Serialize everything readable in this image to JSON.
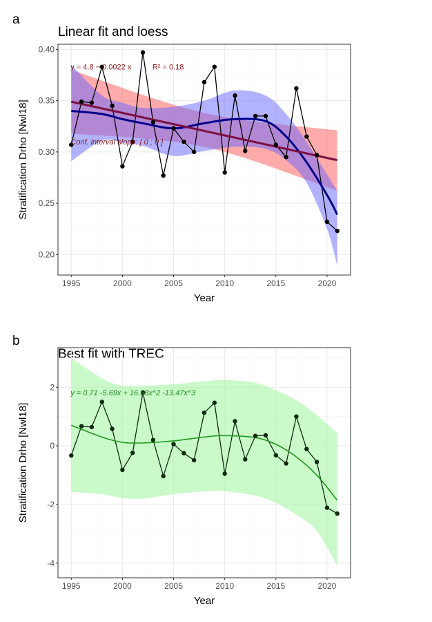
{
  "chart_data": [
    {
      "tag": "a",
      "type": "line",
      "title": "Linear fit and loess",
      "xlabel": "Year",
      "ylabel": "Stratification Drho [Nwl18]",
      "xlim": [
        1993.7,
        2022.3
      ],
      "ylim": [
        0.18,
        0.405
      ],
      "xticks": [
        1995,
        2000,
        2005,
        2010,
        2015,
        2020
      ],
      "yticks": [
        0.2,
        0.25,
        0.3,
        0.35,
        0.4
      ],
      "ytick_labels": [
        "0.20",
        "0.25",
        "0.30",
        "0.35",
        "0.40"
      ],
      "grid": true,
      "x": [
        1995,
        1996,
        1997,
        1998,
        1999,
        2000,
        2001,
        2002,
        2003,
        2004,
        2005,
        2006,
        2007,
        2008,
        2009,
        2010,
        2011,
        2012,
        2013,
        2014,
        2015,
        2016,
        2017,
        2018,
        2019,
        2020,
        2021
      ],
      "observed": [
        0.307,
        0.349,
        0.348,
        0.383,
        0.345,
        0.286,
        0.31,
        0.397,
        0.329,
        0.277,
        0.323,
        0.31,
        0.3,
        0.368,
        0.383,
        0.28,
        0.355,
        0.301,
        0.335,
        0.335,
        0.307,
        0.295,
        0.362,
        0.315,
        0.297,
        0.232,
        0.223
      ],
      "linear_fit": {
        "x": [
          1995,
          2021
        ],
        "y": [
          0.349,
          0.292
        ],
        "ci_upper": [
          0.38,
          0.338,
          0.321
        ],
        "ci_lower": [
          0.318,
          0.305,
          0.262
        ],
        "ci_x": [
          1995,
          2008,
          2021
        ],
        "color": "#7b1040",
        "band_color": "#ff6666"
      },
      "loess_fit": {
        "x": [
          1995,
          1998,
          2000,
          2002,
          2005,
          2008,
          2011,
          2014,
          2016,
          2018,
          2020,
          2021
        ],
        "y": [
          0.34,
          0.337,
          0.332,
          0.328,
          0.323,
          0.328,
          0.332,
          0.33,
          0.315,
          0.29,
          0.258,
          0.239
        ],
        "upper": [
          0.385,
          0.355,
          0.348,
          0.343,
          0.344,
          0.35,
          0.36,
          0.355,
          0.337,
          0.31,
          0.278,
          0.262
        ],
        "lower": [
          0.291,
          0.311,
          0.309,
          0.306,
          0.296,
          0.301,
          0.305,
          0.303,
          0.292,
          0.27,
          0.225,
          0.189
        ],
        "color": "#00008b",
        "band_color": "#6666ff"
      },
      "annotations": [
        {
          "text": "y = 4.8 − 0.0022 x",
          "x": 1995,
          "y": 0.383,
          "italic": false
        },
        {
          "text": "R² = 0.18",
          "x": 2003,
          "y": 0.383,
          "italic": false
        },
        {
          "text": "Conf. interval slope: [ 0 ; 0 ]",
          "x": 1995,
          "y": 0.31,
          "italic": true
        }
      ],
      "annotation_color": "#8b1a1a"
    },
    {
      "tag": "b",
      "type": "line",
      "title": "Best fit with TREC",
      "xlabel": "Year",
      "ylabel": "Stratification Drho [Nwl18]",
      "xlim": [
        1993.7,
        2022.3
      ],
      "ylim": [
        -4.5,
        3.35
      ],
      "xticks": [
        1995,
        2000,
        2005,
        2010,
        2015,
        2020
      ],
      "yticks": [
        -4,
        -2,
        0,
        2
      ],
      "ytick_labels": [
        "-4",
        "-2",
        "0",
        "2"
      ],
      "grid": true,
      "x": [
        1995,
        1996,
        1997,
        1998,
        1999,
        2000,
        2001,
        2002,
        2003,
        2004,
        2005,
        2006,
        2007,
        2008,
        2009,
        2010,
        2011,
        2012,
        2013,
        2014,
        2015,
        2016,
        2017,
        2018,
        2019,
        2020,
        2021
      ],
      "observed": [
        -0.33,
        0.67,
        0.64,
        1.5,
        0.58,
        -0.82,
        -0.24,
        1.82,
        0.2,
        -1.03,
        0.06,
        -0.25,
        -0.49,
        1.13,
        1.47,
        -0.95,
        0.84,
        -0.46,
        0.34,
        0.36,
        -0.32,
        -0.6,
        1.0,
        -0.11,
        -0.55,
        -2.11,
        -2.31
      ],
      "poly_fit": {
        "x": [
          1995,
          1998,
          2000,
          2002,
          2005,
          2008,
          2010,
          2013,
          2015,
          2017,
          2019,
          2021
        ],
        "y": [
          0.7,
          0.3,
          0.12,
          0.1,
          0.17,
          0.3,
          0.35,
          0.28,
          0.05,
          -0.38,
          -1.0,
          -1.86
        ],
        "upper": [
          3.0,
          2.3,
          2.05,
          2.05,
          2.1,
          2.2,
          2.25,
          2.15,
          1.9,
          1.55,
          1.05,
          0.43
        ],
        "lower": [
          -1.57,
          -1.65,
          -1.78,
          -1.8,
          -1.65,
          -1.55,
          -1.55,
          -1.7,
          -1.95,
          -2.35,
          -2.9,
          -4.1
        ],
        "color": "#1e9a1e",
        "band_color": "#a6f5a6"
      },
      "annotations": [
        {
          "text": "y =  0.71   -5.69x  + 16.58x^2   -13.47x^3",
          "x": 1995,
          "y": 1.82,
          "italic": true
        }
      ],
      "annotation_color": "#228b22"
    }
  ]
}
